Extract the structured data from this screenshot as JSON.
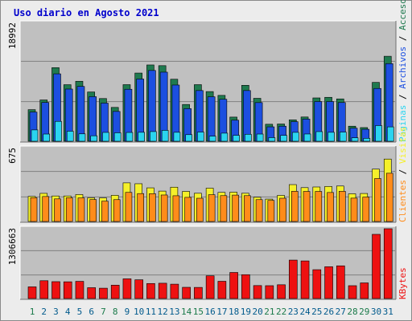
{
  "title": "Uso diario en Agosto 2021",
  "colors": {
    "background": "#c0c0c0",
    "page": "#ececec",
    "grid": "#808080",
    "title": "#0000cc",
    "accesos": "#1f7a4f",
    "archivos": "#1c4fe0",
    "paginas": "#2ad4f0",
    "visitas": "#f5f02a",
    "clientes": "#ff8c1a",
    "kbytes": "#ee1111",
    "weekday": "#005a8c",
    "weekend": "#1a7a4a"
  },
  "side_labels": {
    "top": [
      "Accesos",
      "Archivos",
      "Páginas"
    ],
    "middle": [
      "Clientes",
      "Visitas"
    ],
    "bottom": [
      "KBytes"
    ]
  },
  "chart_data": [
    {
      "type": "bar",
      "panel": "accesos",
      "ymax_label": "18992",
      "ylim": [
        0,
        18992
      ],
      "series_accesos": [
        5088,
        6648,
        11848,
        9104,
        9656,
        7932,
        6876,
        5448,
        9112,
        10976,
        12280,
        12168,
        9984,
        5920,
        9112,
        7996,
        7384,
        3888,
        9004,
        6912,
        2736,
        2776,
        3440,
        3904,
        6976,
        7072,
        6816,
        2424,
        2200,
        9472,
        13680
      ],
      "series_archivos": [
        4696,
        6240,
        10848,
        8400,
        8824,
        7176,
        6136,
        4800,
        8368,
        10016,
        11392,
        11120,
        9048,
        5248,
        8160,
        7160,
        6760,
        3392,
        8160,
        6224,
        2320,
        2424,
        3152,
        3568,
        6392,
        6392,
        6232,
        2104,
        1928,
        8496,
        12496
      ],
      "series_paginas": [
        1824,
        1160,
        3200,
        1616,
        1192,
        880,
        1424,
        1360,
        1416,
        1440,
        1560,
        1752,
        1440,
        1064,
        1480,
        816,
        1304,
        952,
        1120,
        1160,
        584,
        944,
        1432,
        1168,
        1552,
        1440,
        1480,
        560,
        472,
        2520,
        2312
      ]
    },
    {
      "type": "bar",
      "panel": "visitas",
      "ymax_label": "675",
      "ylim": [
        0,
        675
      ],
      "series_visitas": [
        232,
        260,
        236,
        236,
        249,
        219,
        218,
        242,
        357,
        349,
        311,
        281,
        317,
        278,
        261,
        308,
        269,
        271,
        261,
        224,
        207,
        241,
        341,
        313,
        319,
        324,
        328,
        256,
        259,
        484,
        577
      ],
      "series_clientes": [
        220,
        231,
        209,
        219,
        218,
        203,
        188,
        202,
        269,
        258,
        257,
        245,
        238,
        223,
        215,
        248,
        239,
        244,
        239,
        202,
        195,
        215,
        279,
        278,
        278,
        268,
        279,
        216,
        226,
        397,
        446
      ]
    },
    {
      "type": "bar",
      "panel": "kbytes",
      "ymax_label": "1306663",
      "ylim": [
        0,
        1306663
      ],
      "series_kbytes": [
        218770,
        333567,
        316004,
        313500,
        321840,
        203100,
        193900,
        250400,
        368900,
        351200,
        281200,
        286500,
        269000,
        210300,
        208400,
        425200,
        323100,
        488100,
        446700,
        242900,
        240600,
        257800,
        719800,
        704200,
        540100,
        594900,
        612100,
        240600,
        293000,
        1201600,
        1341500
      ],
      "x_categories": [
        "1",
        "2",
        "3",
        "4",
        "5",
        "6",
        "7",
        "8",
        "9",
        "10",
        "11",
        "12",
        "13",
        "14",
        "15",
        "16",
        "17",
        "18",
        "19",
        "20",
        "21",
        "22",
        "23",
        "24",
        "25",
        "26",
        "27",
        "28",
        "29",
        "30",
        "31"
      ],
      "weekend_days": [
        1,
        7,
        8,
        14,
        15,
        21,
        22,
        28,
        29
      ]
    }
  ]
}
